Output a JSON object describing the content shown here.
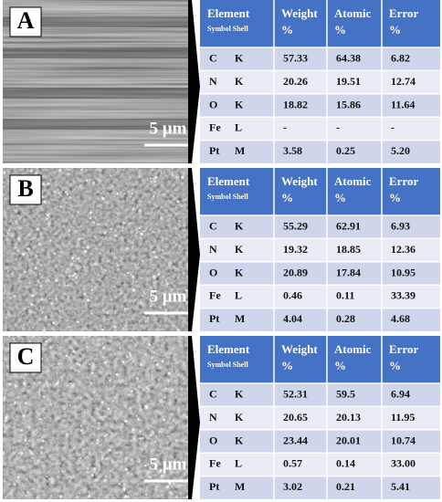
{
  "panels": [
    {
      "label": "A",
      "scale_bar": "5 µm",
      "table": {
        "header": [
          {
            "main": "Element",
            "sub": "Symbol Shell"
          },
          {
            "main": "Weight",
            "sub": "%"
          },
          {
            "main": "Atomic",
            "sub": "%"
          },
          {
            "main": "Error",
            "sub": "%"
          }
        ],
        "rows": [
          [
            "C",
            "K",
            "57.33",
            "64.38",
            "6.82"
          ],
          [
            "N",
            "K",
            "20.26",
            "19.51",
            "12.74"
          ],
          [
            "O",
            "K",
            "18.82",
            "15.86",
            "11.64"
          ],
          [
            "Fe",
            "L",
            "-",
            "-",
            "-"
          ],
          [
            "Pt",
            "M",
            "3.58",
            "0.25",
            "5.20"
          ]
        ]
      }
    },
    {
      "label": "B",
      "scale_bar": "5 µm",
      "table": {
        "header": [
          {
            "main": "Element",
            "sub": "Symbol Shell"
          },
          {
            "main": "Weight",
            "sub": "%"
          },
          {
            "main": "Atomic",
            "sub": "%"
          },
          {
            "main": "Error",
            "sub": "%"
          }
        ],
        "rows": [
          [
            "C",
            "K",
            "55.29",
            "62.91",
            "6.93"
          ],
          [
            "N",
            "K",
            "19.32",
            "18.85",
            "12.36"
          ],
          [
            "O",
            "K",
            "20.89",
            "17.84",
            "10.95"
          ],
          [
            "Fe",
            "L",
            "0.46",
            "0.11",
            "33.39"
          ],
          [
            "Pt",
            "M",
            "4.04",
            "0.28",
            "4.68"
          ]
        ]
      }
    },
    {
      "label": "C",
      "scale_bar": "5 µm",
      "table": {
        "header": [
          {
            "main": "Element",
            "sub": "Symbol Shell"
          },
          {
            "main": "Weight",
            "sub": "%"
          },
          {
            "main": "Atomic",
            "sub": "%"
          },
          {
            "main": "Error",
            "sub": "%"
          }
        ],
        "rows": [
          [
            "C",
            "K",
            "52.31",
            "59.5",
            "6.94"
          ],
          [
            "N",
            "K",
            "20.65",
            "20.13",
            "11.95"
          ],
          [
            "O",
            "K",
            "23.44",
            "20.01",
            "10.74"
          ],
          [
            "Fe",
            "L",
            "0.57",
            "0.14",
            "33.00"
          ],
          [
            "Pt",
            "M",
            "3.02",
            "0.21",
            "5.41"
          ]
        ]
      }
    }
  ]
}
